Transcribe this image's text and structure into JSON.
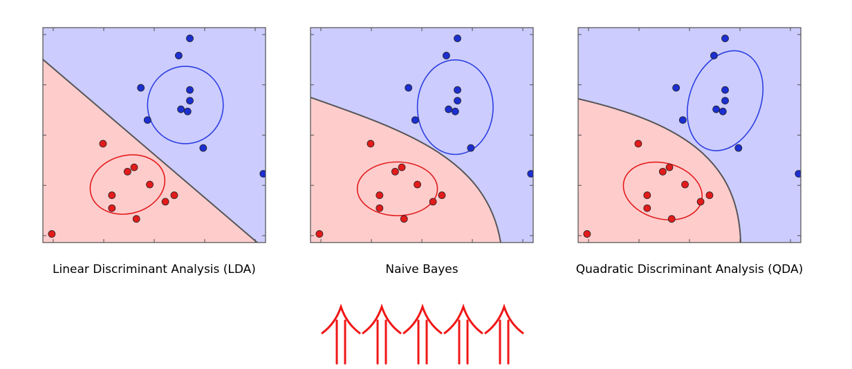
{
  "chart_data": [
    {
      "type": "scatter",
      "title": "Linear Discriminant Analysis (LDA)",
      "boundary": "linear",
      "ylim": [
        0,
        10
      ],
      "xlim": [
        0,
        10
      ],
      "series": [
        {
          "color": "#e21b1b",
          "points": [
            [
              0.4,
              0.4
            ],
            [
              2.7,
              4.6
            ],
            [
              3.8,
              3.3
            ],
            [
              4.1,
              3.5
            ],
            [
              4.8,
              2.7
            ],
            [
              3.1,
              2.2
            ],
            [
              3.1,
              1.6
            ],
            [
              5.5,
              1.9
            ],
            [
              5.9,
              2.2
            ],
            [
              4.2,
              1.1
            ]
          ]
        },
        {
          "color": "#1c2fd0",
          "points": [
            [
              6.6,
              9.5
            ],
            [
              6.1,
              8.7
            ],
            [
              4.4,
              7.2
            ],
            [
              6.6,
              7.1
            ],
            [
              6.6,
              6.6
            ],
            [
              6.2,
              6.2
            ],
            [
              6.5,
              6.1
            ],
            [
              4.7,
              5.7
            ],
            [
              7.2,
              4.4
            ],
            [
              9.9,
              3.2
            ]
          ]
        }
      ],
      "ellipses": [
        {
          "color": "#e21b1b",
          "center": [
            3.8,
            2.7
          ],
          "rx": 1.7,
          "ry": 1.35,
          "angle": 15
        },
        {
          "color": "#2b3ee0",
          "center": [
            6.4,
            6.4
          ],
          "rx": 1.7,
          "ry": 1.8,
          "angle": 0
        }
      ]
    },
    {
      "type": "scatter",
      "title": "Naive Bayes",
      "boundary": "curved",
      "ylim": [
        0,
        10
      ],
      "xlim": [
        0,
        10
      ],
      "series": [
        {
          "color": "#e21b1b",
          "points": [
            [
              0.4,
              0.4
            ],
            [
              2.7,
              4.6
            ],
            [
              3.8,
              3.3
            ],
            [
              4.1,
              3.5
            ],
            [
              4.8,
              2.7
            ],
            [
              3.1,
              2.2
            ],
            [
              3.1,
              1.6
            ],
            [
              5.5,
              1.9
            ],
            [
              5.9,
              2.2
            ],
            [
              4.2,
              1.1
            ]
          ]
        },
        {
          "color": "#1c2fd0",
          "points": [
            [
              6.6,
              9.5
            ],
            [
              6.1,
              8.7
            ],
            [
              4.4,
              7.2
            ],
            [
              6.6,
              7.1
            ],
            [
              6.6,
              6.6
            ],
            [
              6.2,
              6.2
            ],
            [
              6.5,
              6.1
            ],
            [
              4.7,
              5.7
            ],
            [
              7.2,
              4.4
            ],
            [
              9.9,
              3.2
            ]
          ]
        }
      ],
      "ellipses": [
        {
          "color": "#e21b1b",
          "center": [
            3.9,
            2.5
          ],
          "rx": 1.8,
          "ry": 1.25,
          "angle": 0
        },
        {
          "color": "#2b3ee0",
          "center": [
            6.5,
            6.3
          ],
          "rx": 1.7,
          "ry": 2.2,
          "angle": 0
        }
      ]
    },
    {
      "type": "scatter",
      "title": "Quadratic Discriminant Analysis (QDA)",
      "boundary": "curved",
      "ylim": [
        0,
        10
      ],
      "xlim": [
        0,
        10
      ],
      "series": [
        {
          "color": "#e21b1b",
          "points": [
            [
              0.4,
              0.4
            ],
            [
              2.7,
              4.6
            ],
            [
              3.8,
              3.3
            ],
            [
              4.1,
              3.5
            ],
            [
              4.8,
              2.7
            ],
            [
              3.1,
              2.2
            ],
            [
              3.1,
              1.6
            ],
            [
              5.5,
              1.9
            ],
            [
              5.9,
              2.2
            ],
            [
              4.2,
              1.1
            ]
          ]
        },
        {
          "color": "#1c2fd0",
          "points": [
            [
              6.6,
              9.5
            ],
            [
              6.1,
              8.7
            ],
            [
              4.4,
              7.2
            ],
            [
              6.6,
              7.1
            ],
            [
              6.6,
              6.6
            ],
            [
              6.2,
              6.2
            ],
            [
              6.5,
              6.1
            ],
            [
              4.7,
              5.7
            ],
            [
              7.2,
              4.4
            ],
            [
              9.9,
              3.2
            ]
          ]
        }
      ],
      "ellipses": [
        {
          "color": "#e21b1b",
          "center": [
            3.8,
            2.4
          ],
          "rx": 1.8,
          "ry": 1.3,
          "angle": -15
        },
        {
          "color": "#2b3ee0",
          "center": [
            6.6,
            6.6
          ],
          "rx": 1.6,
          "ry": 2.4,
          "angle": -20
        }
      ]
    }
  ],
  "colors": {
    "blue_region": "#ccccff",
    "red_region": "#ffcccc",
    "boundary": "#555555",
    "frame": "#4d4d4d",
    "arrow": "#f01616"
  },
  "arrows": {
    "count": 5,
    "icon": "double-up-arrow-icon"
  }
}
